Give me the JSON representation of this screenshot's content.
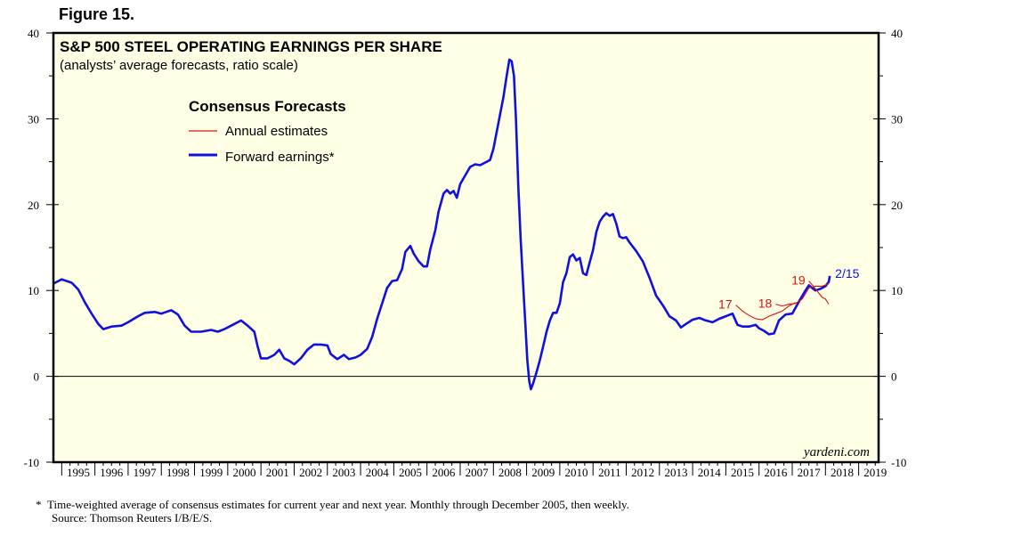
{
  "figure_label": "Figure 15.",
  "footnote": {
    "marker": "*",
    "line1": "Time-weighted average of consensus estimates for current year and next year. Monthly through December 2005, then weekly.",
    "line2": "Source: Thomson Reuters I/B/E/S."
  },
  "colors": {
    "forward": "#1010e0",
    "annual": "#e01010",
    "plot_bg": "#ffffe6",
    "frame": "#000000"
  },
  "chart_data": {
    "type": "line",
    "title": "S&P 500 STEEL OPERATING EARNINGS PER SHARE",
    "subtitle": "(analysts’ average forecasts, ratio scale)",
    "legend": {
      "title": "Consensus Forecasts",
      "placement": "top-left",
      "items": [
        {
          "name": "Annual estimates",
          "color": "#e01010"
        },
        {
          "name": "Forward earnings*",
          "color": "#1010e0"
        }
      ]
    },
    "ylim": [
      -10,
      40
    ],
    "yticks": [
      -10,
      0,
      10,
      20,
      30,
      40
    ],
    "xlim": [
      1994.75,
      2019.6
    ],
    "x_tick_labels": [
      "1995",
      "1996",
      "1997",
      "1998",
      "1999",
      "2000",
      "2001",
      "2002",
      "2003",
      "2004",
      "2005",
      "2006",
      "2007",
      "2008",
      "2009",
      "2010",
      "2011",
      "2012",
      "2013",
      "2014",
      "2015",
      "2016",
      "2017",
      "2018",
      "2019"
    ],
    "watermark": "yardeni.com",
    "last_label": "2/15",
    "series": [
      {
        "name": "Forward earnings*",
        "color": "#1010e0",
        "points": [
          [
            1994.75,
            10.8
          ],
          [
            1995.0,
            11.3
          ],
          [
            1995.3,
            10.9
          ],
          [
            1995.5,
            10.1
          ],
          [
            1995.7,
            8.6
          ],
          [
            1995.9,
            7.3
          ],
          [
            1996.1,
            6.1
          ],
          [
            1996.25,
            5.5
          ],
          [
            1996.5,
            5.8
          ],
          [
            1996.8,
            5.9
          ],
          [
            1997.0,
            6.3
          ],
          [
            1997.3,
            7.0
          ],
          [
            1997.5,
            7.4
          ],
          [
            1997.8,
            7.5
          ],
          [
            1998.0,
            7.3
          ],
          [
            1998.3,
            7.7
          ],
          [
            1998.5,
            7.2
          ],
          [
            1998.7,
            5.9
          ],
          [
            1998.9,
            5.2
          ],
          [
            1999.2,
            5.2
          ],
          [
            1999.5,
            5.4
          ],
          [
            1999.7,
            5.2
          ],
          [
            1999.9,
            5.5
          ],
          [
            2000.2,
            6.1
          ],
          [
            2000.4,
            6.5
          ],
          [
            2000.6,
            5.9
          ],
          [
            2000.8,
            5.2
          ],
          [
            2000.9,
            3.5
          ],
          [
            2001.0,
            2.1
          ],
          [
            2001.2,
            2.1
          ],
          [
            2001.4,
            2.5
          ],
          [
            2001.55,
            3.1
          ],
          [
            2001.7,
            2.1
          ],
          [
            2001.85,
            1.8
          ],
          [
            2002.0,
            1.4
          ],
          [
            2002.2,
            2.1
          ],
          [
            2002.4,
            3.1
          ],
          [
            2002.6,
            3.7
          ],
          [
            2002.8,
            3.7
          ],
          [
            2003.0,
            3.6
          ],
          [
            2003.1,
            2.6
          ],
          [
            2003.3,
            2.0
          ],
          [
            2003.5,
            2.5
          ],
          [
            2003.65,
            2.0
          ],
          [
            2003.85,
            2.2
          ],
          [
            2004.0,
            2.5
          ],
          [
            2004.2,
            3.2
          ],
          [
            2004.35,
            4.6
          ],
          [
            2004.5,
            6.7
          ],
          [
            2004.65,
            8.5
          ],
          [
            2004.8,
            10.3
          ],
          [
            2004.95,
            11.1
          ],
          [
            2005.1,
            11.2
          ],
          [
            2005.25,
            12.5
          ],
          [
            2005.35,
            14.5
          ],
          [
            2005.5,
            15.2
          ],
          [
            2005.6,
            14.3
          ],
          [
            2005.75,
            13.4
          ],
          [
            2005.9,
            12.8
          ],
          [
            2006.0,
            12.8
          ],
          [
            2006.1,
            14.8
          ],
          [
            2006.25,
            17.0
          ],
          [
            2006.35,
            19.2
          ],
          [
            2006.5,
            21.3
          ],
          [
            2006.6,
            21.7
          ],
          [
            2006.7,
            21.3
          ],
          [
            2006.8,
            21.6
          ],
          [
            2006.9,
            20.8
          ],
          [
            2007.0,
            22.4
          ],
          [
            2007.15,
            23.4
          ],
          [
            2007.3,
            24.4
          ],
          [
            2007.45,
            24.7
          ],
          [
            2007.6,
            24.6
          ],
          [
            2007.75,
            24.9
          ],
          [
            2007.9,
            25.2
          ],
          [
            2008.0,
            26.5
          ],
          [
            2008.15,
            29.5
          ],
          [
            2008.3,
            32.5
          ],
          [
            2008.4,
            35.0
          ],
          [
            2008.48,
            36.9
          ],
          [
            2008.55,
            36.7
          ],
          [
            2008.62,
            35.0
          ],
          [
            2008.68,
            30.0
          ],
          [
            2008.75,
            22.0
          ],
          [
            2008.82,
            16.0
          ],
          [
            2008.9,
            10.5
          ],
          [
            2008.97,
            5.5
          ],
          [
            2009.02,
            2.0
          ],
          [
            2009.08,
            -0.6
          ],
          [
            2009.13,
            -1.5
          ],
          [
            2009.2,
            -0.8
          ],
          [
            2009.3,
            0.5
          ],
          [
            2009.4,
            1.9
          ],
          [
            2009.5,
            3.5
          ],
          [
            2009.6,
            5.2
          ],
          [
            2009.7,
            6.5
          ],
          [
            2009.8,
            7.4
          ],
          [
            2009.9,
            7.4
          ],
          [
            2010.0,
            8.5
          ],
          [
            2010.1,
            11.0
          ],
          [
            2010.2,
            12.0
          ],
          [
            2010.3,
            13.9
          ],
          [
            2010.4,
            14.2
          ],
          [
            2010.5,
            13.5
          ],
          [
            2010.6,
            13.8
          ],
          [
            2010.7,
            12.0
          ],
          [
            2010.8,
            11.8
          ],
          [
            2010.9,
            13.3
          ],
          [
            2011.0,
            14.7
          ],
          [
            2011.1,
            16.8
          ],
          [
            2011.2,
            18.0
          ],
          [
            2011.3,
            18.6
          ],
          [
            2011.4,
            19.0
          ],
          [
            2011.5,
            18.7
          ],
          [
            2011.6,
            18.9
          ],
          [
            2011.7,
            17.8
          ],
          [
            2011.8,
            16.3
          ],
          [
            2011.9,
            16.1
          ],
          [
            2012.0,
            16.2
          ],
          [
            2012.1,
            15.6
          ],
          [
            2012.3,
            14.6
          ],
          [
            2012.5,
            13.4
          ],
          [
            2012.7,
            11.5
          ],
          [
            2012.9,
            9.4
          ],
          [
            2013.1,
            8.3
          ],
          [
            2013.3,
            7.0
          ],
          [
            2013.5,
            6.5
          ],
          [
            2013.65,
            5.7
          ],
          [
            2013.8,
            6.1
          ],
          [
            2014.0,
            6.6
          ],
          [
            2014.2,
            6.8
          ],
          [
            2014.4,
            6.5
          ],
          [
            2014.6,
            6.3
          ],
          [
            2014.8,
            6.7
          ],
          [
            2015.0,
            7.0
          ],
          [
            2015.2,
            7.3
          ],
          [
            2015.35,
            6.0
          ],
          [
            2015.5,
            5.8
          ],
          [
            2015.7,
            5.8
          ],
          [
            2015.9,
            6.0
          ],
          [
            2016.0,
            5.6
          ],
          [
            2016.15,
            5.3
          ],
          [
            2016.3,
            4.9
          ],
          [
            2016.45,
            5.0
          ],
          [
            2016.6,
            6.5
          ],
          [
            2016.8,
            7.2
          ],
          [
            2017.0,
            7.3
          ],
          [
            2017.2,
            8.7
          ],
          [
            2017.4,
            10.0
          ],
          [
            2017.5,
            10.6
          ],
          [
            2017.6,
            10.3
          ],
          [
            2017.7,
            10.0
          ],
          [
            2017.85,
            10.2
          ],
          [
            2018.0,
            10.5
          ],
          [
            2018.1,
            11.0
          ],
          [
            2018.13,
            11.7
          ]
        ]
      },
      {
        "name": "Annual estimates",
        "color": "#e01010",
        "segments": [
          {
            "label": "17",
            "points": [
              [
                2015.3,
                8.3
              ],
              [
                2015.5,
                7.6
              ],
              [
                2015.7,
                7.1
              ],
              [
                2015.9,
                6.7
              ],
              [
                2016.1,
                6.6
              ],
              [
                2016.3,
                7.0
              ],
              [
                2016.5,
                7.3
              ],
              [
                2016.7,
                7.6
              ],
              [
                2016.9,
                8.2
              ],
              [
                2017.1,
                8.6
              ]
            ]
          },
          {
            "label": "18",
            "points": [
              [
                2016.5,
                8.4
              ],
              [
                2016.7,
                8.2
              ],
              [
                2016.9,
                8.4
              ],
              [
                2017.1,
                8.5
              ],
              [
                2017.3,
                9.0
              ],
              [
                2017.5,
                10.3
              ],
              [
                2017.7,
                10.5
              ],
              [
                2017.9,
                10.5
              ],
              [
                2018.1,
                10.8
              ]
            ]
          },
          {
            "label": "19",
            "points": [
              [
                2017.5,
                11.1
              ],
              [
                2017.7,
                10.2
              ],
              [
                2017.9,
                9.2
              ],
              [
                2018.0,
                9.0
              ],
              [
                2018.1,
                8.4
              ]
            ]
          }
        ]
      }
    ]
  }
}
